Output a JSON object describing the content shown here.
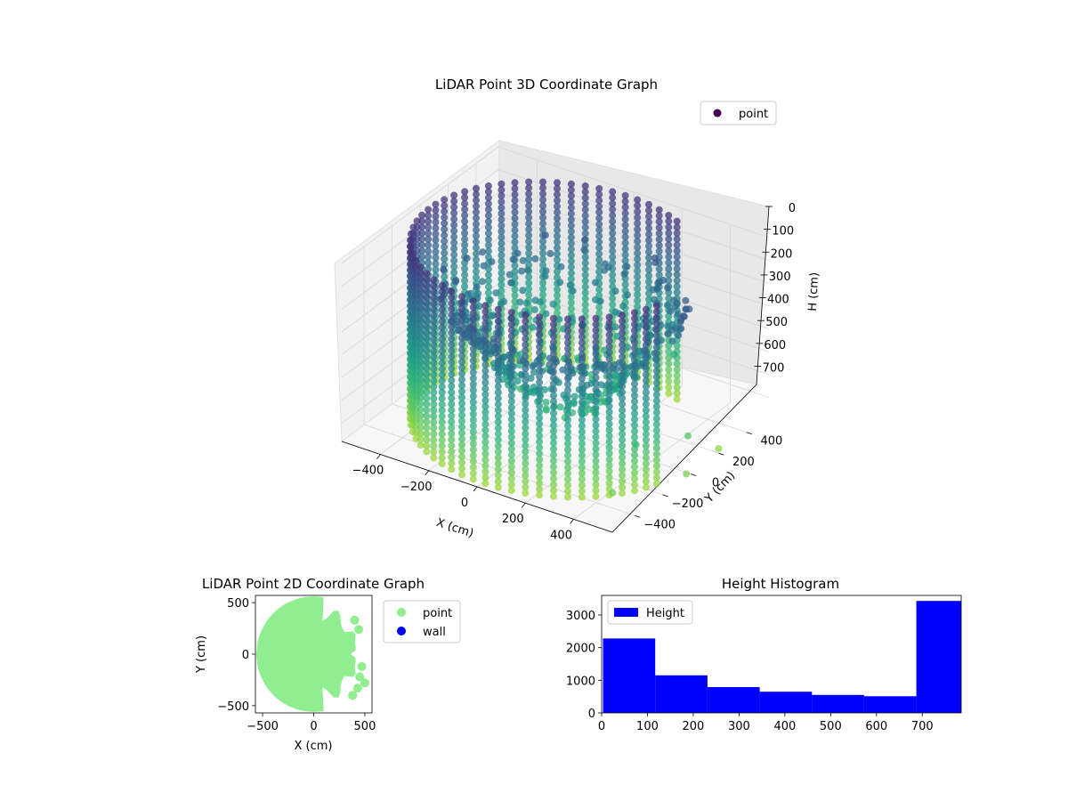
{
  "chart_data": [
    {
      "type": "scatter",
      "title": "LiDAR Point 3D Coordinate Graph",
      "xlabel": "X (cm)",
      "ylabel": "Y (cm)",
      "zlabel": "H (cm)",
      "x_ticks": [
        -400,
        -200,
        0,
        200,
        400
      ],
      "y_ticks": [
        -400,
        -200,
        0,
        200,
        400
      ],
      "z_ticks": [
        0,
        100,
        200,
        300,
        400,
        500,
        600,
        700
      ],
      "xlim": [
        -560,
        560
      ],
      "ylim": [
        -560,
        560
      ],
      "zlim": [
        780,
        0
      ],
      "z_inverted": true,
      "colormap": "viridis",
      "legend": {
        "entries": [
          {
            "label": "point",
            "color": "#440154"
          }
        ],
        "position": "upper-right"
      },
      "series": [
        {
          "name": "point",
          "description": "cylindrical wall of scanned points, radius ~520 cm, heights 0-780 cm, plus an interior cluster",
          "ring": {
            "radius": 520,
            "h_min": 0,
            "h_max": 780
          }
        }
      ]
    },
    {
      "type": "scatter",
      "title": "LiDAR Point 2D Coordinate Graph",
      "xlabel": "X (cm)",
      "ylabel": "Y (cm)",
      "x_ticks": [
        -500,
        0,
        500
      ],
      "y_ticks": [
        -500,
        0,
        500
      ],
      "xlim": [
        -570,
        570
      ],
      "ylim": [
        -570,
        570
      ],
      "legend": {
        "entries": [
          {
            "label": "point",
            "color": "#90ee90"
          },
          {
            "label": "wall",
            "color": "#0000ff"
          }
        ],
        "position": "outside-right"
      },
      "series": [
        {
          "name": "point",
          "color": "#90ee90",
          "region": "filled disc radius ~560 cm, clipped by axes, ragged right edge x 250-560"
        },
        {
          "name": "wall",
          "color": "#0000ff",
          "points": []
        }
      ]
    },
    {
      "type": "bar",
      "title": "Height Histogram",
      "xlabel": "",
      "ylabel": "",
      "x_ticks": [
        0,
        100,
        200,
        300,
        400,
        500,
        600,
        700
      ],
      "y_ticks": [
        0,
        1000,
        2000,
        3000
      ],
      "xlim": [
        0,
        785
      ],
      "ylim": [
        0,
        3600
      ],
      "bins": [
        {
          "start": 3,
          "end": 117,
          "value": 2280
        },
        {
          "start": 117,
          "end": 231,
          "value": 1150
        },
        {
          "start": 231,
          "end": 345,
          "value": 790
        },
        {
          "start": 345,
          "end": 459,
          "value": 650
        },
        {
          "start": 459,
          "end": 573,
          "value": 550
        },
        {
          "start": 573,
          "end": 687,
          "value": 510
        },
        {
          "start": 687,
          "end": 785,
          "value": 3430
        }
      ],
      "color": "#0000ff",
      "legend": {
        "entries": [
          {
            "label": "Height",
            "color": "#0000ff"
          }
        ],
        "position": "upper-left"
      }
    }
  ]
}
